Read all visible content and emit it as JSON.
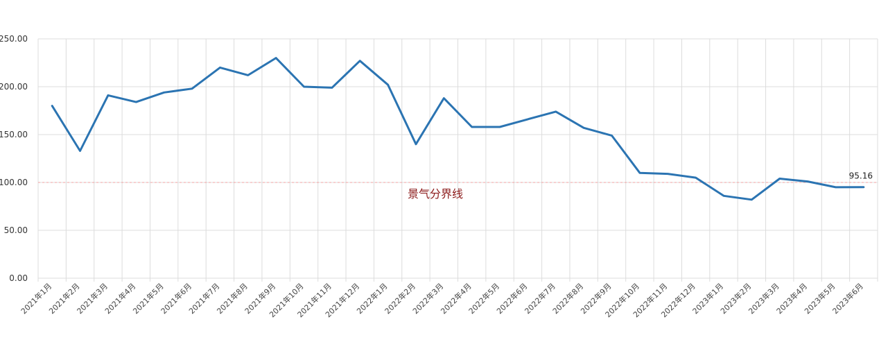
{
  "chart_data": {
    "type": "line",
    "categories": [
      "2021年1月",
      "2021年2月",
      "2021年3月",
      "2021年4月",
      "2021年5月",
      "2021年6月",
      "2021年7月",
      "2021年8月",
      "2021年9月",
      "2021年10月",
      "2021年11月",
      "2021年12月",
      "2022年1月",
      "2022年2月",
      "2022年3月",
      "2022年4月",
      "2022年5月",
      "2022年6月",
      "2022年7月",
      "2022年8月",
      "2022年9月",
      "2022年10月",
      "2022年11月",
      "2022年12月",
      "2023年1月",
      "2023年2月",
      "2023年3月",
      "2023年4月",
      "2023年5月",
      "2023年6月"
    ],
    "series": [
      {
        "values": [
          180,
          133,
          191,
          184,
          194,
          198,
          220,
          212,
          230,
          200,
          199,
          227,
          202,
          140,
          188,
          158,
          158,
          166,
          174,
          157,
          149,
          110,
          109,
          105,
          86,
          82,
          104,
          101,
          95,
          95.16
        ]
      }
    ],
    "yticks": [
      "0.00",
      "50.00",
      "100.00",
      "150.00",
      "200.00",
      "250.00"
    ],
    "ylim": [
      0,
      250
    ],
    "grid": true,
    "reference_line": {
      "value": 100,
      "label": "景气分界线"
    },
    "last_point_label": "95.16",
    "colors": {
      "series": "#2b74b2",
      "reference": "#f2a0a0",
      "reference_text": "#8b1a1a",
      "grid": "#dcdcdc"
    }
  }
}
